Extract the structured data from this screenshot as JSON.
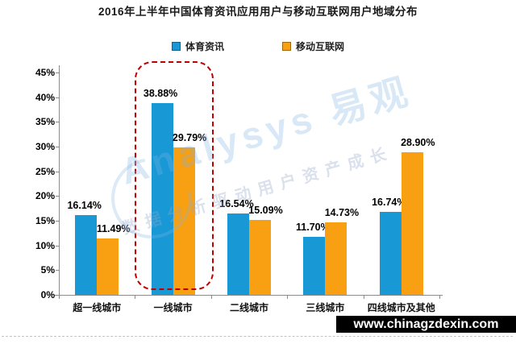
{
  "chart_data": {
    "type": "bar",
    "title": "2016年上半年中国体育资讯应用用户与移动互联网用户地域分布",
    "categories": [
      "超一线城市",
      "一线城市",
      "二线城市",
      "三线城市",
      "四线城市及其他"
    ],
    "series": [
      {
        "name": "体育资讯",
        "color": "#1899D6",
        "values": [
          16.14,
          38.88,
          16.54,
          11.7,
          16.74
        ]
      },
      {
        "name": "移动互联网",
        "color": "#F8A011",
        "values": [
          11.49,
          29.79,
          15.09,
          14.73,
          28.9
        ]
      }
    ],
    "xlabel": "",
    "ylabel": "",
    "ylim": [
      0,
      45
    ],
    "ytick_step": 5,
    "ytick_format": "percent",
    "value_label_format": "two-decimal-percent",
    "grid": false,
    "legend_position": "top",
    "highlight": {
      "category": "一线城市",
      "style": "red-dashed-rounded-box",
      "color": "#C00000"
    }
  },
  "legend": {
    "items": [
      {
        "label": "体育资讯",
        "color": "#1899D6"
      },
      {
        "label": "移动互联网",
        "color": "#F8A011"
      }
    ]
  },
  "watermark": {
    "line1": "Analysys 易观",
    "line2": "数据分析驱动用户资产成长",
    "color": "rgba(125,180,225,0.30)",
    "color2": "rgba(150,165,200,0.35)"
  },
  "footer": {
    "website": "www.chinagzdexin.com",
    "background": "#000000",
    "text_color": "#FFFFFF"
  }
}
